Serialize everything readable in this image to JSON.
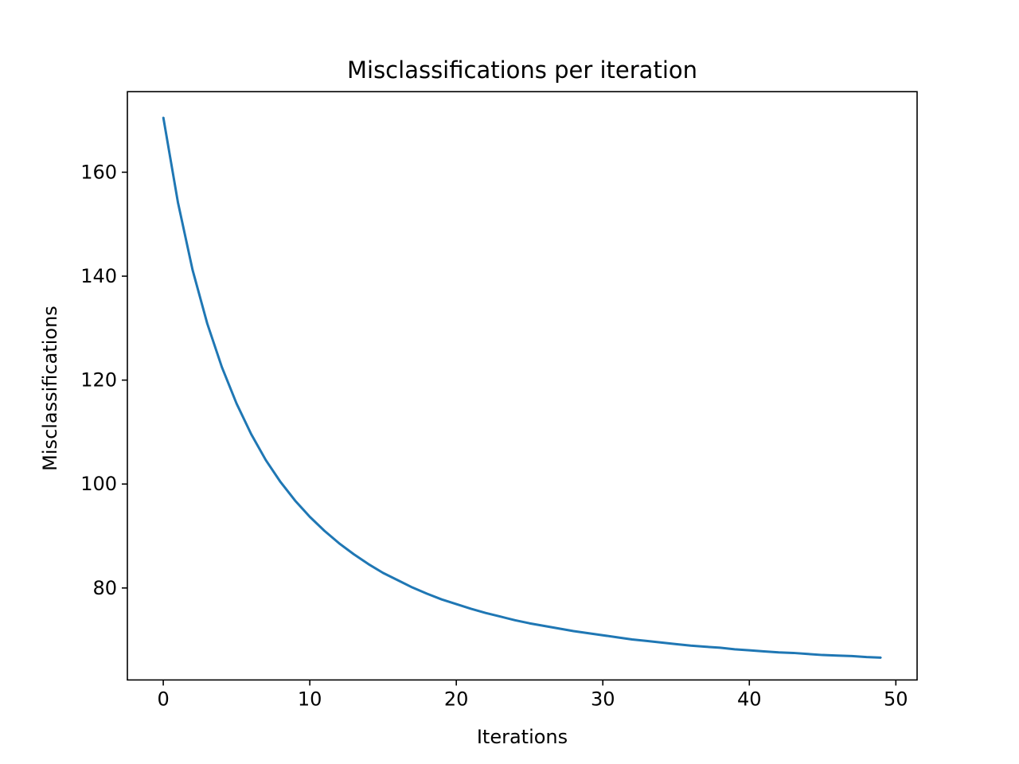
{
  "chart_data": {
    "type": "line",
    "title": "Misclassifications per iteration",
    "xlabel": "Iterations",
    "ylabel": "Misclassifications",
    "xlim": [
      -2.45,
      51.45
    ],
    "ylim": [
      62.3,
      175.5
    ],
    "xticks": [
      0,
      10,
      20,
      30,
      40,
      50
    ],
    "yticks": [
      80,
      100,
      120,
      140,
      160
    ],
    "grid": false,
    "series": [
      {
        "color": "#1f77b4",
        "x": [
          0,
          1,
          2,
          3,
          4,
          5,
          6,
          7,
          8,
          9,
          10,
          11,
          12,
          13,
          14,
          15,
          16,
          17,
          18,
          19,
          20,
          21,
          22,
          23,
          24,
          25,
          26,
          27,
          28,
          29,
          30,
          31,
          32,
          33,
          34,
          35,
          36,
          37,
          38,
          39,
          40,
          41,
          42,
          43,
          44,
          45,
          46,
          47,
          48,
          49
        ],
        "values": [
          170.6,
          154.2,
          141.2,
          130.9,
          122.5,
          115.5,
          109.6,
          104.6,
          100.4,
          96.8,
          93.7,
          91.0,
          88.6,
          86.5,
          84.6,
          82.9,
          81.5,
          80.1,
          78.9,
          77.8,
          76.9,
          76.0,
          75.2,
          74.5,
          73.8,
          73.2,
          72.7,
          72.2,
          71.7,
          71.3,
          70.9,
          70.5,
          70.1,
          69.8,
          69.5,
          69.2,
          68.9,
          68.7,
          68.5,
          68.2,
          68.0,
          67.8,
          67.6,
          67.5,
          67.3,
          67.1,
          67.0,
          66.9,
          66.7,
          66.6
        ]
      }
    ]
  }
}
